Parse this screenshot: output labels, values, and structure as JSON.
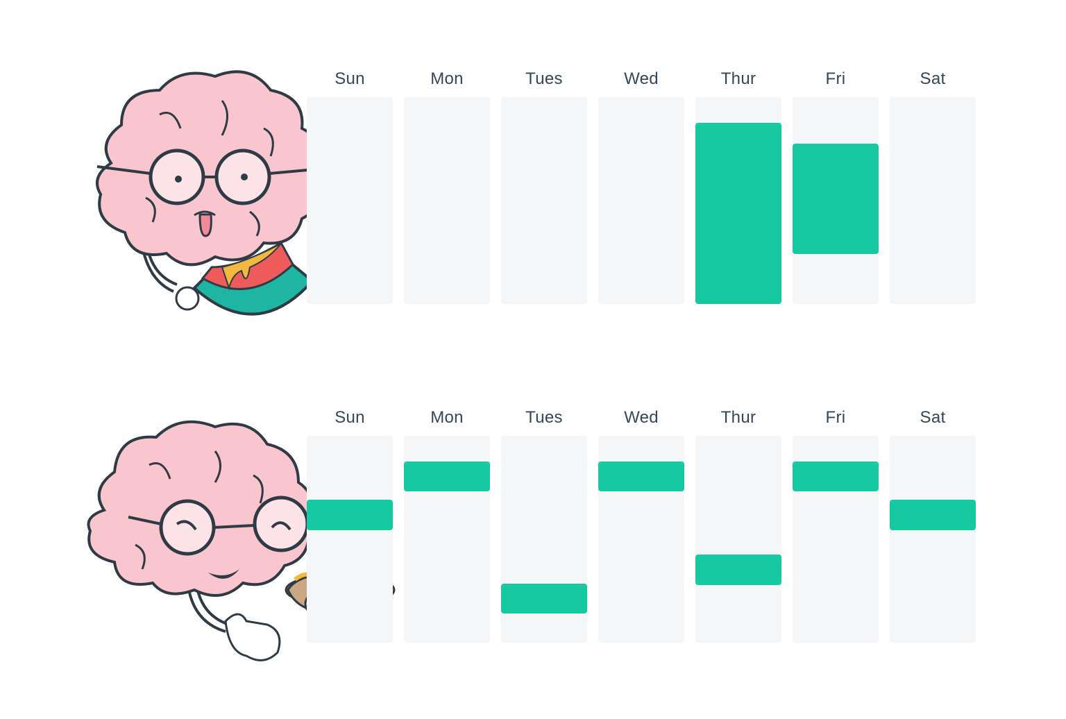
{
  "colors": {
    "column": "#f5f6f8",
    "block": "#16c9a0",
    "label": "#33475b",
    "brain": "#f9c5cf",
    "outline": "#2e3a44"
  },
  "panels": [
    {
      "mascot": "brain-eating-watermelon-icon",
      "days": [
        "Sun",
        "Mon",
        "Tues",
        "Wed",
        "Thur",
        "Fri",
        "Sat"
      ],
      "blocks": [
        {
          "day": "Thur",
          "start": 0.125,
          "end": 1.0
        },
        {
          "day": "Fri",
          "start": 0.225,
          "end": 0.76
        }
      ]
    },
    {
      "mascot": "brain-eating-hotdog-icon",
      "days": [
        "Sun",
        "Mon",
        "Tues",
        "Wed",
        "Thur",
        "Fri",
        "Sat"
      ],
      "blocks": [
        {
          "day": "Sun",
          "start": 0.31,
          "end": 0.455
        },
        {
          "day": "Mon",
          "start": 0.125,
          "end": 0.27
        },
        {
          "day": "Tues",
          "start": 0.715,
          "end": 0.86
        },
        {
          "day": "Wed",
          "start": 0.125,
          "end": 0.27
        },
        {
          "day": "Thur",
          "start": 0.575,
          "end": 0.72
        },
        {
          "day": "Fri",
          "start": 0.125,
          "end": 0.27
        },
        {
          "day": "Sat",
          "start": 0.31,
          "end": 0.455
        }
      ]
    }
  ]
}
